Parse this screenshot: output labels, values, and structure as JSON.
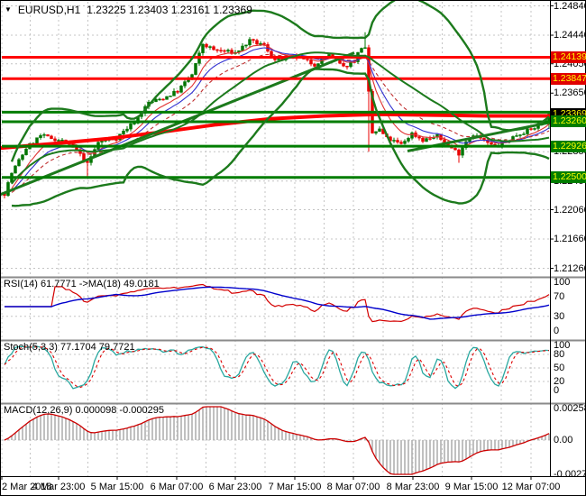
{
  "window": {
    "title_symbol": "EURUSD,H1",
    "title_ohlc": "1.23225 1.23403 1.23161 1.23369",
    "dropdown_icon": "▼"
  },
  "colors": {
    "background": "#ffffff",
    "grid": "#c4c4c4",
    "frame": "#000000",
    "separator": "#8a8a8a",
    "up_candle": "#007500",
    "down_candle": "#e80000",
    "bollinger": "#1c7a1c",
    "level_red": "#ff0000",
    "level_green": "#007d00",
    "trendline_green": "#1c7a1c",
    "ma_thick_red": "#ff0000",
    "ma_fast_red": "#e03030",
    "ma_blue": "#3030d0",
    "ma_dashed_red": "#c03030",
    "rsi_line": "#d40000",
    "rsi_ma": "#0000cc",
    "stoch_k": "#2aa8a0",
    "stoch_d": "#dd0000",
    "macd_hist": "#b0b0b0",
    "macd_signal": "#cc0000",
    "badge_text": "#ffff00",
    "axis_text": "#000000"
  },
  "chart_data": {
    "type": "candlestick+indicators",
    "symbol": "EURUSD",
    "timeframe": "H1",
    "last_candle_ohlc": [
      1.23225,
      1.23403,
      1.23161,
      1.23369
    ],
    "x_axis": {
      "labels": [
        "2 Mar 2018",
        "4 Mar 23:00",
        "5 Mar 15:00",
        "6 Mar 07:00",
        "6 Mar 23:00",
        "7 Mar 15:00",
        "8 Mar 07:00",
        "8 Mar 23:00",
        "9 Mar 15:00",
        "12 Mar 07:00"
      ],
      "positions": [
        2,
        65,
        130,
        196,
        261,
        327,
        392,
        458,
        523,
        589
      ]
    },
    "price_axis": {
      "visible_labels": [
        "1.24840",
        "1.24440",
        "1.24050",
        "1.23650",
        "1.22850",
        "1.22450",
        "1.22060",
        "1.21660",
        "1.21260"
      ],
      "gridline_prices": [
        1.2484,
        1.2444,
        1.2405,
        1.2365,
        1.2325,
        1.2285,
        1.2245,
        1.2206,
        1.2166,
        1.2126
      ]
    },
    "price_badges": [
      {
        "value": "1.24139",
        "type": "red"
      },
      {
        "value": "1.23847",
        "type": "red"
      },
      {
        "value": "1.23369",
        "type": "black"
      },
      {
        "value": "1.23260",
        "type": "green"
      },
      {
        "value": "1.22926",
        "type": "green"
      },
      {
        "value": "1.22500",
        "type": "green"
      }
    ],
    "levels": {
      "resistance_red": [
        1.24139,
        1.23847
      ],
      "support_green": [
        1.2339,
        1.2326,
        1.22926,
        1.225
      ]
    },
    "trendlines": [
      {
        "name": "ascending-steep",
        "points": [
          [
            0,
            1.22265
          ],
          [
            393,
            1.242
          ]
        ]
      },
      {
        "name": "ascending-right",
        "points": [
          [
            452,
            1.2286
          ],
          [
            610,
            1.2325
          ]
        ]
      }
    ],
    "ma_thick_red_path": [
      [
        0,
        1.229
      ],
      [
        60,
        1.2296
      ],
      [
        120,
        1.2303
      ],
      [
        180,
        1.2312
      ],
      [
        240,
        1.2322
      ],
      [
        300,
        1.233
      ],
      [
        360,
        1.2334
      ],
      [
        420,
        1.2336
      ],
      [
        480,
        1.2335
      ],
      [
        540,
        1.2334
      ],
      [
        610,
        1.2334
      ]
    ],
    "candles": {
      "count": 152,
      "close_keyframes": [
        [
          0,
          1.2228
        ],
        [
          2,
          1.2256
        ],
        [
          6,
          1.229
        ],
        [
          10,
          1.2307
        ],
        [
          16,
          1.23
        ],
        [
          20,
          1.2287
        ],
        [
          23,
          1.2268
        ],
        [
          26,
          1.2298
        ],
        [
          31,
          1.2304
        ],
        [
          36,
          1.2326
        ],
        [
          40,
          1.2352
        ],
        [
          44,
          1.2358
        ],
        [
          48,
          1.2368
        ],
        [
          52,
          1.239
        ],
        [
          55,
          1.2432
        ],
        [
          58,
          1.2424
        ],
        [
          64,
          1.242
        ],
        [
          68,
          1.2436
        ],
        [
          72,
          1.243
        ],
        [
          75,
          1.241
        ],
        [
          81,
          1.2414
        ],
        [
          86,
          1.2404
        ],
        [
          90,
          1.2418
        ],
        [
          94,
          1.24
        ],
        [
          97,
          1.241
        ],
        [
          99,
          1.2428
        ],
        [
          100,
          1.2425
        ],
        [
          101,
          1.2365
        ],
        [
          102,
          1.231
        ],
        [
          104,
          1.2315
        ],
        [
          106,
          1.2303
        ],
        [
          110,
          1.2295
        ],
        [
          113,
          1.231
        ],
        [
          116,
          1.2301
        ],
        [
          120,
          1.2306
        ],
        [
          124,
          1.229
        ],
        [
          126,
          1.2283
        ],
        [
          128,
          1.23
        ],
        [
          130,
          1.2309
        ],
        [
          133,
          1.23
        ],
        [
          136,
          1.2291
        ],
        [
          139,
          1.2299
        ],
        [
          142,
          1.2308
        ],
        [
          145,
          1.2314
        ],
        [
          148,
          1.232
        ],
        [
          151,
          1.2337
        ]
      ],
      "spikes": [
        [
          23,
          "low",
          1.225
        ],
        [
          100,
          "high",
          1.2448
        ],
        [
          101,
          "low",
          1.2285
        ],
        [
          126,
          "low",
          1.227
        ]
      ],
      "noise": 0.00055,
      "wick": 0.0004,
      "seed": 7
    },
    "bollinger": {
      "period": 34,
      "deviation": 2.4
    },
    "emas": [
      {
        "period": 8,
        "color_key": "ma_fast_red",
        "dash": false
      },
      {
        "period": 13,
        "color_key": "ma_blue",
        "dash": false
      },
      {
        "period": 21,
        "color_key": "ma_dashed_red",
        "dash": true
      }
    ],
    "rsi": {
      "label": "RSI(14) 61.7771  ->MA(18) 49.0181",
      "period": 14,
      "ma_period": 18,
      "current": 61.7771,
      "ma_current": 49.0181,
      "scale": [
        100,
        70,
        30,
        0
      ],
      "dashed_levels": [
        70,
        30
      ]
    },
    "stoch": {
      "label": "Stoch(5,3,3) 77.1704 79.7721",
      "k_current": 77.1704,
      "d_current": 79.7721,
      "scale": [
        100,
        80,
        50,
        20,
        0
      ],
      "dashed_levels": [
        80,
        50,
        20
      ]
    },
    "macd": {
      "label": "MACD(12,26,9) 0.000098 -0.000295",
      "main_current": 9.8e-05,
      "signal_current": -0.000295,
      "scale_top": "0.002581",
      "scale_zero": "0.00",
      "scale_bottom": "-0.002781"
    }
  }
}
